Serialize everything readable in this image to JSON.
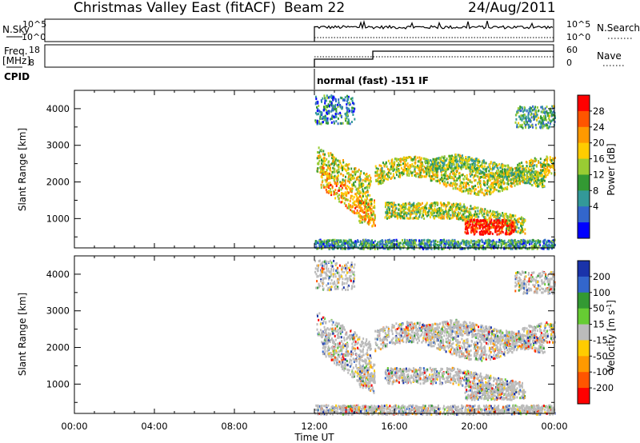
{
  "header": {
    "station": "Christmas Valley East (fitACF)",
    "beam": "Beam 22",
    "date": "24/Aug/2011"
  },
  "strip": {
    "nsky_label": "N.Sky",
    "nsky_ticks": [
      "10^5",
      "10^0"
    ],
    "nsearch_label": "N.Search",
    "nsearch_ticks": [
      "10^5",
      "10^0"
    ],
    "freq_label_1": "Freq.",
    "freq_label_2": "[MHz]",
    "freq_ticks": [
      "18",
      "8"
    ],
    "nave_label": "Nave",
    "nave_ticks": [
      "60",
      "0"
    ],
    "cpid_label": "CPID",
    "cpid_text": "normal (fast) -151 IF"
  },
  "chart_data": [
    {
      "type": "heatmap",
      "name": "power-panel",
      "ylabel": "Slant Range [km]",
      "yticks": [
        1000,
        2000,
        3000,
        4000
      ],
      "ylim": [
        200,
        4500
      ],
      "xlim": [
        0,
        24
      ],
      "colorbar": {
        "label": "Power [dB]",
        "ticks": [
          "28",
          "24",
          "20",
          "16",
          "12",
          "8",
          "4"
        ],
        "colors": [
          "#ff0000",
          "#ff5500",
          "#ff9900",
          "#ffcc00",
          "#99cc33",
          "#339933",
          "#339999",
          "#3366cc",
          "#0000ff"
        ]
      },
      "data_start_hour": 12,
      "data_end_hour": 24
    },
    {
      "type": "heatmap",
      "name": "velocity-panel",
      "ylabel": "Slant Range [km]",
      "yticks": [
        1000,
        2000,
        3000,
        4000
      ],
      "ylim": [
        200,
        4500
      ],
      "xlim": [
        0,
        24
      ],
      "colorbar": {
        "label": "Velocity [m s^-1]",
        "ticks": [
          "200",
          "100",
          "50",
          "15",
          "-15",
          "-50",
          "-100",
          "-200"
        ],
        "colors": [
          "#1a33aa",
          "#3366cc",
          "#339933",
          "#66cc33",
          "#bbbbbb",
          "#ffcc00",
          "#ff9900",
          "#ff5500",
          "#ff0000"
        ]
      }
    }
  ],
  "xaxis": {
    "ticks": [
      "00:00",
      "04:00",
      "08:00",
      "12:00",
      "16:00",
      "20:00",
      "00:00"
    ],
    "label": "Time UT"
  }
}
